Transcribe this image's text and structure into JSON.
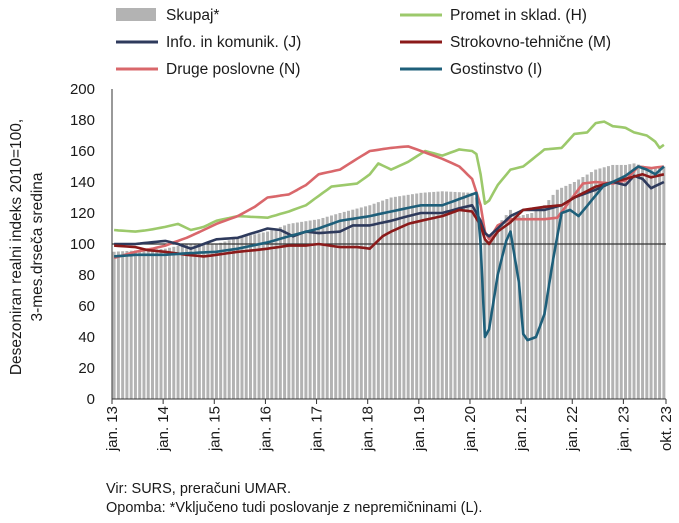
{
  "chart_data": {
    "type": "line",
    "subtype": "line with bars",
    "ylabel_line1": "Desezoniran realni indeks 2010=100,",
    "ylabel_line2": "3-mes.drseča sredina",
    "ylim": [
      0,
      200
    ],
    "y_ticks": [
      0,
      20,
      40,
      60,
      80,
      100,
      120,
      140,
      160,
      180,
      200
    ],
    "reference_line": 100,
    "x_tick_labels": [
      "jan. 13",
      "jan. 14",
      "jan. 15",
      "jan. 16",
      "jan. 17",
      "jan. 18",
      "jan. 19",
      "jan. 20",
      "jan. 21",
      "jan. 22",
      "jan. 23",
      "okt. 23"
    ],
    "x_start": "2013-01",
    "x_end": "2023-10",
    "legend_position": "top",
    "series": [
      {
        "name": "Skupaj*",
        "key": "skupaj",
        "kind": "bar",
        "color": "#b3b3b3",
        "keypoints": [
          [
            "2013-01",
            95
          ],
          [
            "2014-01",
            97
          ],
          [
            "2014-06",
            100
          ],
          [
            "2015-01",
            100
          ],
          [
            "2015-06",
            104
          ],
          [
            "2016-01",
            108
          ],
          [
            "2016-06",
            113
          ],
          [
            "2017-01",
            116
          ],
          [
            "2017-06",
            120
          ],
          [
            "2018-01",
            125
          ],
          [
            "2018-06",
            130
          ],
          [
            "2019-01",
            133
          ],
          [
            "2019-06",
            134
          ],
          [
            "2020-01",
            133
          ],
          [
            "2020-02",
            130
          ],
          [
            "2020-03",
            115
          ],
          [
            "2020-04",
            103
          ],
          [
            "2020-05",
            102
          ],
          [
            "2020-07",
            112
          ],
          [
            "2020-10",
            122
          ],
          [
            "2020-12",
            118
          ],
          [
            "2021-03",
            120
          ],
          [
            "2021-06",
            125
          ],
          [
            "2021-09",
            135
          ],
          [
            "2022-01",
            140
          ],
          [
            "2022-06",
            148
          ],
          [
            "2022-10",
            151
          ],
          [
            "2023-01",
            151
          ],
          [
            "2023-03",
            152
          ],
          [
            "2023-07",
            149
          ],
          [
            "2023-10",
            150
          ]
        ]
      },
      {
        "name": "Promet in sklad. (H)",
        "key": "promet",
        "kind": "line",
        "color": "#9cc96b",
        "keypoints": [
          [
            "2013-01",
            109
          ],
          [
            "2013-06",
            108
          ],
          [
            "2013-09",
            109
          ],
          [
            "2014-01",
            111
          ],
          [
            "2014-04",
            113
          ],
          [
            "2014-07",
            109
          ],
          [
            "2014-10",
            111
          ],
          [
            "2015-01",
            115
          ],
          [
            "2015-06",
            118
          ],
          [
            "2016-01",
            117
          ],
          [
            "2016-06",
            121
          ],
          [
            "2016-10",
            125
          ],
          [
            "2017-01",
            131
          ],
          [
            "2017-04",
            137
          ],
          [
            "2017-10",
            139
          ],
          [
            "2018-01",
            145
          ],
          [
            "2018-03",
            152
          ],
          [
            "2018-06",
            148
          ],
          [
            "2018-10",
            153
          ],
          [
            "2019-02",
            160
          ],
          [
            "2019-06",
            157
          ],
          [
            "2019-10",
            161
          ],
          [
            "2020-01",
            160
          ],
          [
            "2020-02",
            158
          ],
          [
            "2020-03",
            145
          ],
          [
            "2020-04",
            126
          ],
          [
            "2020-05",
            128
          ],
          [
            "2020-07",
            138
          ],
          [
            "2020-10",
            148
          ],
          [
            "2021-01",
            150
          ],
          [
            "2021-06",
            161
          ],
          [
            "2021-10",
            162
          ],
          [
            "2022-01",
            171
          ],
          [
            "2022-04",
            172
          ],
          [
            "2022-06",
            178
          ],
          [
            "2022-08",
            179
          ],
          [
            "2022-10",
            176
          ],
          [
            "2023-01",
            175
          ],
          [
            "2023-03",
            172
          ],
          [
            "2023-06",
            170
          ],
          [
            "2023-08",
            166
          ],
          [
            "2023-09",
            162
          ],
          [
            "2023-10",
            164
          ]
        ]
      },
      {
        "name": "Info. in komunik. (J)",
        "key": "info",
        "kind": "line",
        "color": "#2e3a5c",
        "keypoints": [
          [
            "2013-01",
            100
          ],
          [
            "2013-06",
            100
          ],
          [
            "2014-01",
            102
          ],
          [
            "2014-04",
            100
          ],
          [
            "2014-07",
            97
          ],
          [
            "2014-10",
            100
          ],
          [
            "2015-01",
            103
          ],
          [
            "2015-06",
            104
          ],
          [
            "2016-01",
            110
          ],
          [
            "2016-04",
            109
          ],
          [
            "2016-07",
            105
          ],
          [
            "2016-10",
            108
          ],
          [
            "2017-01",
            107
          ],
          [
            "2017-06",
            108
          ],
          [
            "2017-09",
            112
          ],
          [
            "2018-01",
            112
          ],
          [
            "2018-06",
            115
          ],
          [
            "2018-10",
            118
          ],
          [
            "2019-01",
            120
          ],
          [
            "2019-06",
            120
          ],
          [
            "2019-10",
            123
          ],
          [
            "2020-01",
            125
          ],
          [
            "2020-03",
            115
          ],
          [
            "2020-04",
            107
          ],
          [
            "2020-05",
            105
          ],
          [
            "2020-07",
            110
          ],
          [
            "2020-10",
            118
          ],
          [
            "2021-01",
            122
          ],
          [
            "2021-06",
            122
          ],
          [
            "2021-10",
            125
          ],
          [
            "2022-01",
            130
          ],
          [
            "2022-06",
            135
          ],
          [
            "2022-10",
            140
          ],
          [
            "2023-01",
            138
          ],
          [
            "2023-03",
            144
          ],
          [
            "2023-05",
            142
          ],
          [
            "2023-07",
            136
          ],
          [
            "2023-10",
            140
          ]
        ]
      },
      {
        "name": "Strokovno-tehnične (M)",
        "key": "strokovno",
        "kind": "line",
        "color": "#8b1a1a",
        "keypoints": [
          [
            "2013-01",
            99
          ],
          [
            "2013-06",
            98
          ],
          [
            "2013-09",
            96
          ],
          [
            "2014-01",
            95
          ],
          [
            "2014-06",
            93
          ],
          [
            "2014-10",
            92
          ],
          [
            "2015-01",
            93
          ],
          [
            "2015-06",
            95
          ],
          [
            "2015-10",
            96
          ],
          [
            "2016-01",
            97
          ],
          [
            "2016-06",
            99
          ],
          [
            "2016-10",
            99
          ],
          [
            "2017-01",
            100
          ],
          [
            "2017-06",
            98
          ],
          [
            "2017-10",
            98
          ],
          [
            "2018-01",
            97
          ],
          [
            "2018-04",
            105
          ],
          [
            "2018-06",
            108
          ],
          [
            "2018-10",
            113
          ],
          [
            "2019-01",
            115
          ],
          [
            "2019-06",
            118
          ],
          [
            "2019-10",
            122
          ],
          [
            "2020-01",
            121
          ],
          [
            "2020-03",
            112
          ],
          [
            "2020-04",
            103
          ],
          [
            "2020-05",
            100
          ],
          [
            "2020-07",
            108
          ],
          [
            "2020-10",
            114
          ],
          [
            "2021-01",
            122
          ],
          [
            "2021-06",
            124
          ],
          [
            "2021-10",
            125
          ],
          [
            "2022-01",
            130
          ],
          [
            "2022-06",
            137
          ],
          [
            "2022-10",
            140
          ],
          [
            "2023-01",
            142
          ],
          [
            "2023-05",
            145
          ],
          [
            "2023-07",
            143
          ],
          [
            "2023-10",
            145
          ]
        ]
      },
      {
        "name": "Druge poslovne (N)",
        "key": "druge",
        "kind": "line",
        "color": "#d9676b",
        "keypoints": [
          [
            "2013-01",
            91
          ],
          [
            "2013-06",
            95
          ],
          [
            "2013-10",
            97
          ],
          [
            "2014-01",
            99
          ],
          [
            "2014-06",
            104
          ],
          [
            "2014-10",
            109
          ],
          [
            "2015-01",
            113
          ],
          [
            "2015-06",
            118
          ],
          [
            "2015-10",
            124
          ],
          [
            "2016-01",
            130
          ],
          [
            "2016-06",
            132
          ],
          [
            "2016-10",
            138
          ],
          [
            "2017-01",
            145
          ],
          [
            "2017-06",
            148
          ],
          [
            "2017-10",
            155
          ],
          [
            "2018-01",
            160
          ],
          [
            "2018-06",
            162
          ],
          [
            "2018-10",
            163
          ],
          [
            "2019-01",
            160
          ],
          [
            "2019-06",
            155
          ],
          [
            "2019-10",
            150
          ],
          [
            "2020-01",
            142
          ],
          [
            "2020-03",
            125
          ],
          [
            "2020-04",
            108
          ],
          [
            "2020-05",
            103
          ],
          [
            "2020-07",
            112
          ],
          [
            "2020-10",
            116
          ],
          [
            "2021-01",
            116
          ],
          [
            "2021-06",
            116
          ],
          [
            "2021-09",
            117
          ],
          [
            "2021-12",
            128
          ],
          [
            "2022-03",
            139
          ],
          [
            "2022-06",
            140
          ],
          [
            "2022-10",
            139
          ],
          [
            "2023-01",
            141
          ],
          [
            "2023-04",
            150
          ],
          [
            "2023-07",
            149
          ],
          [
            "2023-10",
            150
          ]
        ]
      },
      {
        "name": "Gostinstvo (I)",
        "key": "gostinstvo",
        "kind": "line",
        "color": "#1e5f7a",
        "keypoints": [
          [
            "2013-01",
            92
          ],
          [
            "2013-06",
            93
          ],
          [
            "2014-01",
            93
          ],
          [
            "2014-06",
            94
          ],
          [
            "2015-01",
            95
          ],
          [
            "2015-06",
            97
          ],
          [
            "2016-01",
            101
          ],
          [
            "2016-06",
            105
          ],
          [
            "2017-01",
            110
          ],
          [
            "2017-06",
            115
          ],
          [
            "2018-01",
            118
          ],
          [
            "2018-06",
            121
          ],
          [
            "2019-01",
            125
          ],
          [
            "2019-06",
            125
          ],
          [
            "2020-01",
            132
          ],
          [
            "2020-02",
            133
          ],
          [
            "2020-03",
            100
          ],
          [
            "2020-04",
            40
          ],
          [
            "2020-05",
            45
          ],
          [
            "2020-07",
            80
          ],
          [
            "2020-09",
            102
          ],
          [
            "2020-10",
            108
          ],
          [
            "2020-12",
            75
          ],
          [
            "2021-01",
            42
          ],
          [
            "2021-02",
            38
          ],
          [
            "2021-04",
            40
          ],
          [
            "2021-06",
            55
          ],
          [
            "2021-08",
            90
          ],
          [
            "2021-10",
            120
          ],
          [
            "2021-12",
            122
          ],
          [
            "2022-02",
            118
          ],
          [
            "2022-05",
            128
          ],
          [
            "2022-08",
            138
          ],
          [
            "2022-10",
            140
          ],
          [
            "2023-01",
            144
          ],
          [
            "2023-04",
            150
          ],
          [
            "2023-06",
            148
          ],
          [
            "2023-08",
            145
          ],
          [
            "2023-10",
            150
          ]
        ]
      }
    ]
  },
  "source_note": "Vir: SURS, preračuni UMAR.",
  "footnote": "Opomba: *Vključeno tudi poslovanje z nepremičninami (L)."
}
